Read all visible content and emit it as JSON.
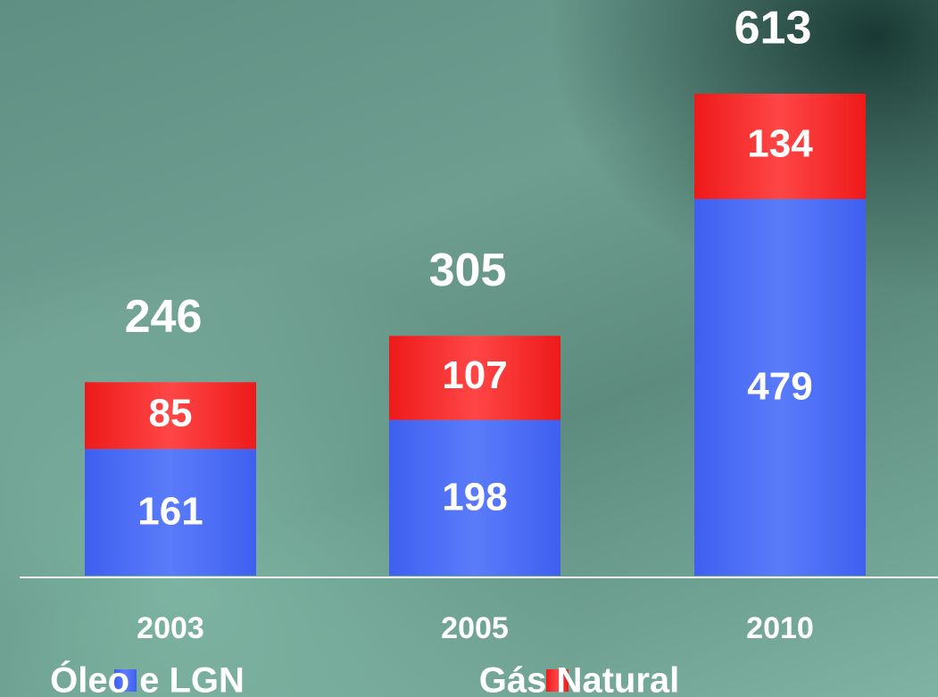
{
  "chart_data": {
    "type": "stacked_bar",
    "categories": [
      "2003",
      "2005",
      "2010"
    ],
    "series": [
      {
        "name": "Óleo e LGN",
        "color": "#4a6cf5",
        "values": [
          161,
          198,
          479
        ]
      },
      {
        "name": "Gás Natural",
        "color": "#f52424",
        "values": [
          85,
          107,
          134
        ]
      }
    ],
    "totals": [
      246,
      305,
      613
    ],
    "legend": "bottom"
  }
}
